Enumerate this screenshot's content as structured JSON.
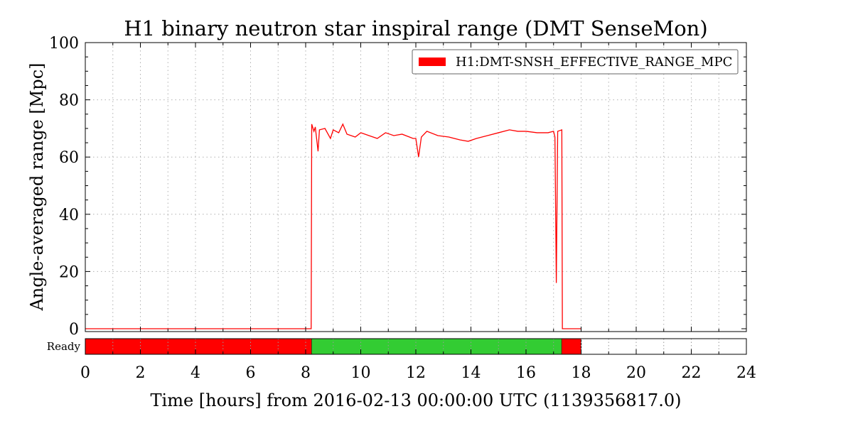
{
  "chart_data": {
    "type": "line",
    "title": "H1 binary neutron star inspiral range (DMT SenseMon)",
    "xlabel": "Time [hours] from 2016-02-13 00:00:00 UTC (1139356817.0)",
    "ylabel": "Angle-averaged range [Mpc]",
    "xlim": [
      0,
      24
    ],
    "ylim": [
      0,
      100
    ],
    "xticks": [
      "0",
      "2",
      "4",
      "6",
      "8",
      "10",
      "12",
      "14",
      "16",
      "18",
      "20",
      "22",
      "24"
    ],
    "yticks": [
      "0",
      "20",
      "40",
      "60",
      "80",
      "100"
    ],
    "grid": true,
    "legend_position": "top-right",
    "series": [
      {
        "name": "H1:DMT-SNSH_EFFECTIVE_RANGE_MPC",
        "color": "#ff0000",
        "points": [
          [
            0,
            0
          ],
          [
            8.2,
            0
          ],
          [
            8.22,
            71.5
          ],
          [
            8.3,
            69
          ],
          [
            8.35,
            70.5
          ],
          [
            8.45,
            62
          ],
          [
            8.5,
            69.5
          ],
          [
            8.7,
            70
          ],
          [
            8.9,
            66.5
          ],
          [
            9.0,
            69.5
          ],
          [
            9.2,
            68.5
          ],
          [
            9.35,
            71.5
          ],
          [
            9.5,
            68
          ],
          [
            9.8,
            67
          ],
          [
            10.0,
            68.5
          ],
          [
            10.3,
            67.5
          ],
          [
            10.6,
            66.5
          ],
          [
            10.9,
            68.5
          ],
          [
            11.2,
            67.5
          ],
          [
            11.5,
            68
          ],
          [
            11.9,
            66.5
          ],
          [
            12.0,
            66.5
          ],
          [
            12.1,
            60
          ],
          [
            12.2,
            67
          ],
          [
            12.4,
            69
          ],
          [
            12.8,
            67.5
          ],
          [
            13.2,
            67
          ],
          [
            13.6,
            66
          ],
          [
            13.9,
            65.5
          ],
          [
            14.2,
            66.5
          ],
          [
            14.6,
            67.5
          ],
          [
            15.0,
            68.5
          ],
          [
            15.4,
            69.5
          ],
          [
            15.7,
            69
          ],
          [
            16.0,
            69
          ],
          [
            16.4,
            68.5
          ],
          [
            16.8,
            68.5
          ],
          [
            17.0,
            69
          ],
          [
            17.05,
            67
          ],
          [
            17.1,
            16
          ],
          [
            17.15,
            69
          ],
          [
            17.3,
            69.5
          ],
          [
            17.32,
            0
          ],
          [
            18.0,
            0
          ]
        ]
      }
    ],
    "state_bar": {
      "label": "Ready",
      "segments": [
        {
          "start": 0,
          "end": 8.22,
          "color": "#ff0000"
        },
        {
          "start": 8.22,
          "end": 17.3,
          "color": "#33cc33"
        },
        {
          "start": 17.3,
          "end": 18.0,
          "color": "#ff0000"
        }
      ]
    }
  }
}
